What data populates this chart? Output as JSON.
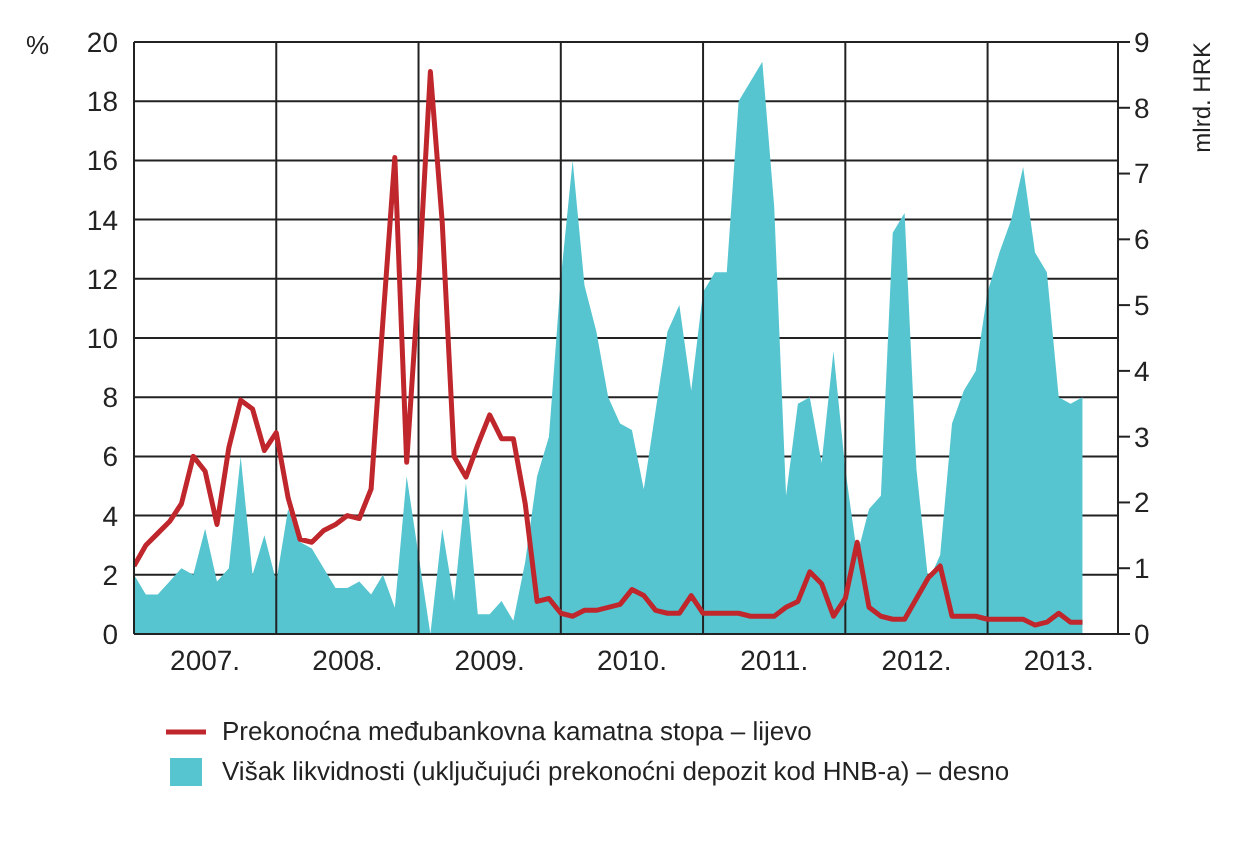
{
  "chart_data": {
    "type": "line",
    "ylabel": "%",
    "y2label": "mlrd. HRK",
    "x": [
      "2007-01",
      "2007-02",
      "2007-03",
      "2007-04",
      "2007-05",
      "2007-06",
      "2007-07",
      "2007-08",
      "2007-09",
      "2007-10",
      "2007-11",
      "2007-12",
      "2008-01",
      "2008-02",
      "2008-03",
      "2008-04",
      "2008-05",
      "2008-06",
      "2008-07",
      "2008-08",
      "2008-09",
      "2008-10",
      "2008-11",
      "2008-12",
      "2009-01",
      "2009-02",
      "2009-03",
      "2009-04",
      "2009-05",
      "2009-06",
      "2009-07",
      "2009-08",
      "2009-09",
      "2009-10",
      "2009-11",
      "2009-12",
      "2010-01",
      "2010-02",
      "2010-03",
      "2010-04",
      "2010-05",
      "2010-06",
      "2010-07",
      "2010-08",
      "2010-09",
      "2010-10",
      "2010-11",
      "2010-12",
      "2011-01",
      "2011-02",
      "2011-03",
      "2011-04",
      "2011-05",
      "2011-06",
      "2011-07",
      "2011-08",
      "2011-09",
      "2011-10",
      "2011-11",
      "2011-12",
      "2012-01",
      "2012-02",
      "2012-03",
      "2012-04",
      "2012-05",
      "2012-06",
      "2012-07",
      "2012-08",
      "2012-09",
      "2012-10",
      "2012-11",
      "2012-12",
      "2013-01",
      "2013-02",
      "2013-03",
      "2013-04",
      "2013-05",
      "2013-06",
      "2013-07",
      "2013-08",
      "2013-09"
    ],
    "series": [
      {
        "name": "Prekonoćna međubankovna kamatna stopa – lijevo",
        "color": "#c0272d",
        "values": [
          2.3,
          3.0,
          3.4,
          3.8,
          4.4,
          6.0,
          5.5,
          3.7,
          6.3,
          7.9,
          7.6,
          6.2,
          6.8,
          4.6,
          3.2,
          3.1,
          3.5,
          3.7,
          4.0,
          3.9,
          4.9,
          10.6,
          16.1,
          5.8,
          11.8,
          19.0,
          13.9,
          6.0,
          5.3,
          6.4,
          7.4,
          6.6,
          6.6,
          4.4,
          1.1,
          1.2,
          0.7,
          0.6,
          0.8,
          0.8,
          0.9,
          1.0,
          1.5,
          1.3,
          0.8,
          0.7,
          0.7,
          1.3,
          0.7,
          0.7,
          0.7,
          0.7,
          0.6,
          0.6,
          0.6,
          0.9,
          1.1,
          2.1,
          1.7,
          0.6,
          1.2,
          3.1,
          0.9,
          0.6,
          0.5,
          0.5,
          1.2,
          1.9,
          2.3,
          0.6,
          0.6,
          0.6,
          0.5,
          0.5,
          0.5,
          0.5,
          0.3,
          0.4,
          0.7,
          0.4,
          0.4
        ]
      },
      {
        "name": "Višak likvidnosti (uključujući prekonoćni depozit kod HNB-a) – desno",
        "type": "area",
        "axis": "y2",
        "color": "#56c5d0",
        "values": [
          0.9,
          0.6,
          0.6,
          0.8,
          1.0,
          0.9,
          1.6,
          0.8,
          1.0,
          2.7,
          0.9,
          1.5,
          0.8,
          1.9,
          1.4,
          1.3,
          1.0,
          0.7,
          0.7,
          0.8,
          0.6,
          0.9,
          0.4,
          2.4,
          1.2,
          0.0,
          1.6,
          0.5,
          2.3,
          0.3,
          0.3,
          0.5,
          0.2,
          1.1,
          2.4,
          3.0,
          5.4,
          7.2,
          5.3,
          4.6,
          3.6,
          3.2,
          3.1,
          2.2,
          3.4,
          4.6,
          5.0,
          3.7,
          5.2,
          5.5,
          5.5,
          8.1,
          8.4,
          8.7,
          6.5,
          2.1,
          3.5,
          3.6,
          2.6,
          4.3,
          2.5,
          1.2,
          1.9,
          2.1,
          6.1,
          6.4,
          2.5,
          0.8,
          1.2,
          3.2,
          3.7,
          4.0,
          5.2,
          5.8,
          6.3,
          7.1,
          5.8,
          5.5,
          3.6,
          3.5,
          3.6
        ]
      }
    ],
    "xlim": [
      "2007-01",
      "2013-12"
    ],
    "xticks": [
      {
        "value": "2007-07",
        "label": "2007."
      },
      {
        "value": "2008-01",
        "label": null
      },
      {
        "value": "2008-07",
        "label": "2008."
      },
      {
        "value": "2009-01",
        "label": null
      },
      {
        "value": "2009-07",
        "label": "2009."
      },
      {
        "value": "2010-01",
        "label": null
      },
      {
        "value": "2010-07",
        "label": "2010."
      },
      {
        "value": "2011-01",
        "label": null
      },
      {
        "value": "2011-07",
        "label": "2011."
      },
      {
        "value": "2012-01",
        "label": null
      },
      {
        "value": "2012-07",
        "label": "2012."
      },
      {
        "value": "2013-01",
        "label": null
      },
      {
        "value": "2013-07",
        "label": "2013."
      }
    ],
    "ylim": [
      0,
      20
    ],
    "yticks": [
      0,
      2,
      4,
      6,
      8,
      10,
      12,
      14,
      16,
      18,
      20
    ],
    "y2lim": [
      0,
      9
    ],
    "y2ticks": [
      0,
      1,
      2,
      3,
      4,
      5,
      6,
      7,
      8,
      9
    ],
    "grid": true,
    "legend": "bottom"
  }
}
